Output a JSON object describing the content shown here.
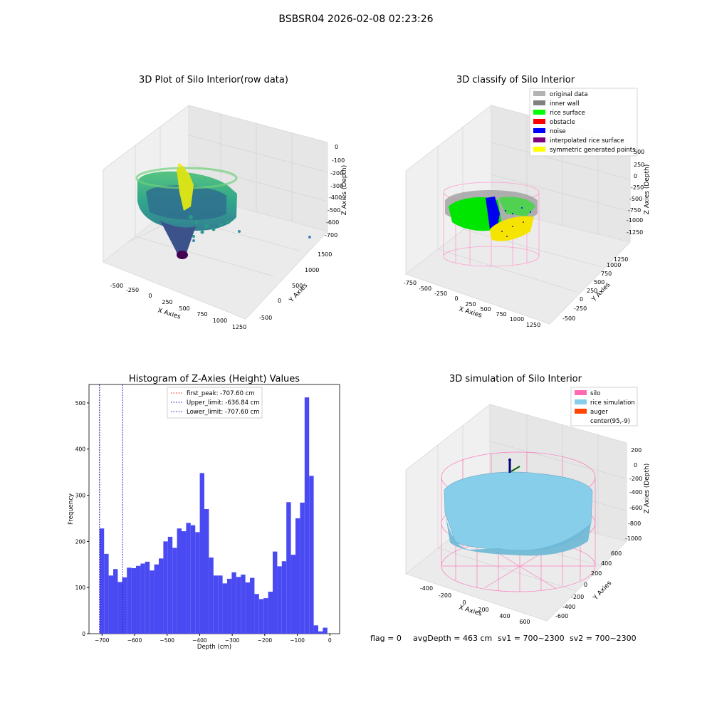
{
  "figure": {
    "suptitle": "BSBSR04 2026-02-08 02:23:26",
    "footer": {
      "flag": "flag = 0",
      "avg_depth": "avgDepth = 463 cm",
      "sv1": "sv1 = 700~2300",
      "sv2": "sv2 = 700~2300"
    }
  },
  "colors": {
    "histogram_bar": "#4a4af2",
    "first_peak_line": "#ff0000",
    "limit_line": "#0000cc",
    "original_data": "#b3b3b3",
    "inner_wall": "#808080",
    "rice_surface": "#00ff00",
    "obstacle": "#ff0000",
    "noise": "#0000ff",
    "interpolated_rice_surface": "#800080",
    "symmetric_generated_points": "#ffff00",
    "silo": "#ff69b4",
    "rice_simulation": "#87ceeb",
    "auger": "#ff4500"
  },
  "chart_data": [
    {
      "type": "scatter",
      "subtype": "3d",
      "title": "3D Plot of Silo Interior(row data)",
      "xlabel": "X Axies",
      "ylabel": "Y Axies",
      "zlabel": "Z Axies (Depth)",
      "x_ticks": [
        "-500",
        "-250",
        "0",
        "250",
        "500",
        "750",
        "1000",
        "1250"
      ],
      "y_ticks": [
        "-500",
        "0",
        "500",
        "1000",
        "1500"
      ],
      "z_ticks": [
        "0",
        "-100",
        "-200",
        "-300",
        "-400",
        "-500",
        "-600",
        "-700"
      ],
      "xlim": [
        -600,
        1300
      ],
      "ylim": [
        -700,
        1600
      ],
      "zlim": [
        -750,
        20
      ],
      "colormap": "viridis",
      "grid": true
    },
    {
      "type": "scatter",
      "subtype": "3d",
      "title": "3D classify of Silo Interior",
      "xlabel": "X Axies",
      "ylabel": "Y Axies",
      "zlabel": "Z Axies (Depth)",
      "x_ticks": [
        "-750",
        "-500",
        "-250",
        "0",
        "250",
        "500",
        "750",
        "1000",
        "1250"
      ],
      "y_ticks": [
        "-500",
        "-250",
        "0",
        "250",
        "500",
        "750",
        "1000",
        "1250"
      ],
      "z_ticks": [
        "500",
        "250",
        "0",
        "-250",
        "-500",
        "-750",
        "-1000",
        "-1250"
      ],
      "legend": [
        "original data",
        "inner wall",
        "rice surface",
        "obstacle",
        "noise",
        "interpolated rice surface",
        "symmetric generated points"
      ],
      "legend_position": "top-right",
      "grid": true
    },
    {
      "type": "bar",
      "subtype": "histogram",
      "title": "Histogram of Z-Axies (Height) Values",
      "xlabel": "Depth (cm)",
      "ylabel": "Frequency",
      "xlim": [
        -740,
        30
      ],
      "ylim": [
        0,
        540
      ],
      "x_ticks": [
        -700,
        -600,
        -500,
        -400,
        -300,
        -200,
        -100,
        0
      ],
      "y_ticks": [
        0,
        100,
        200,
        300,
        400,
        500
      ],
      "bin_start": -707.6,
      "bin_width": 14.0,
      "values": [
        228,
        173,
        126,
        140,
        112,
        122,
        143,
        142,
        147,
        152,
        156,
        137,
        150,
        163,
        200,
        210,
        186,
        228,
        222,
        240,
        235,
        220,
        348,
        270,
        165,
        126,
        126,
        109,
        119,
        133,
        123,
        128,
        111,
        121,
        86,
        75,
        77,
        91,
        178,
        146,
        157,
        285,
        171,
        250,
        284,
        512,
        342,
        18,
        5,
        13
      ],
      "reference_lines": [
        {
          "label": "first_peak: -707.60 cm",
          "x": -707.6,
          "color_key": "first_peak_line"
        },
        {
          "label": "Upper_limit: -636.84 cm",
          "x": -636.84,
          "color_key": "limit_line"
        },
        {
          "label": "Lower_limit: -707.60 cm",
          "x": -707.6,
          "color_key": "limit_line"
        }
      ],
      "legend_position": "top-center",
      "grid": false
    },
    {
      "type": "area",
      "subtype": "3d-surface",
      "title": "3D simulation of Silo Interior",
      "xlabel": "X Axies",
      "ylabel": "Y Axies",
      "zlabel": "Z Axies (Depth)",
      "x_ticks": [
        "-400",
        "-200",
        "0",
        "200",
        "400",
        "600"
      ],
      "y_ticks": [
        "-600",
        "-400",
        "-200",
        "0",
        "200",
        "400",
        "600"
      ],
      "z_ticks": [
        "200",
        "0",
        "-200",
        "-400",
        "-600",
        "-800",
        "-1000"
      ],
      "legend": [
        "silo",
        "rice simulation",
        "auger",
        "center(95,-9)"
      ],
      "legend_position": "top-right",
      "grid": true
    }
  ]
}
